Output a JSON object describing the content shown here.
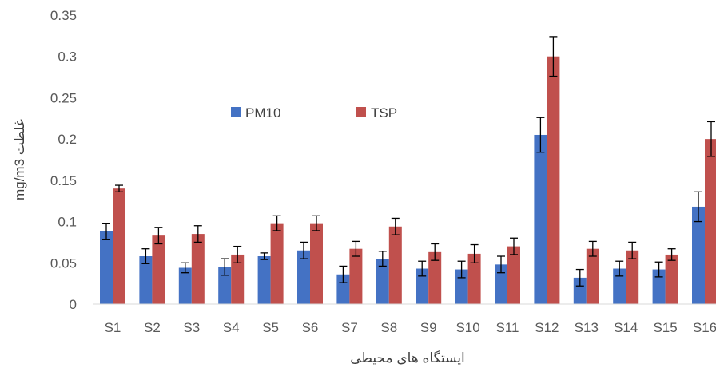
{
  "chart_data": {
    "type": "bar",
    "title": "",
    "xlabel": "ایستگاه های محیطی",
    "ylabel": "mg/m3 غلظت",
    "ylim": [
      0,
      0.35
    ],
    "yticks": [
      "0",
      "0.05",
      "0.1",
      "0.15",
      "0.2",
      "0.25",
      "0.3",
      "0.35"
    ],
    "grid": false,
    "legend_position": "upper-middle",
    "categories": [
      "S1",
      "S2",
      "S3",
      "S4",
      "S5",
      "S6",
      "S7",
      "S8",
      "S9",
      "S10",
      "S11",
      "S12",
      "S13",
      "S14",
      "S15",
      "S16"
    ],
    "series": [
      {
        "name": "PM10",
        "color": "#4472C4",
        "values": [
          0.088,
          0.058,
          0.044,
          0.045,
          0.058,
          0.065,
          0.036,
          0.055,
          0.043,
          0.042,
          0.048,
          0.205,
          0.032,
          0.043,
          0.042,
          0.118
        ],
        "errors": [
          0.01,
          0.009,
          0.006,
          0.01,
          0.004,
          0.01,
          0.01,
          0.009,
          0.009,
          0.01,
          0.01,
          0.021,
          0.01,
          0.009,
          0.009,
          0.018
        ]
      },
      {
        "name": "TSP",
        "color": "#C0504D",
        "values": [
          0.14,
          0.083,
          0.085,
          0.06,
          0.098,
          0.098,
          0.067,
          0.094,
          0.063,
          0.061,
          0.07,
          0.3,
          0.067,
          0.065,
          0.06,
          0.2
        ],
        "errors": [
          0.004,
          0.01,
          0.01,
          0.01,
          0.009,
          0.009,
          0.009,
          0.01,
          0.01,
          0.011,
          0.01,
          0.024,
          0.009,
          0.01,
          0.007,
          0.021
        ]
      }
    ]
  }
}
